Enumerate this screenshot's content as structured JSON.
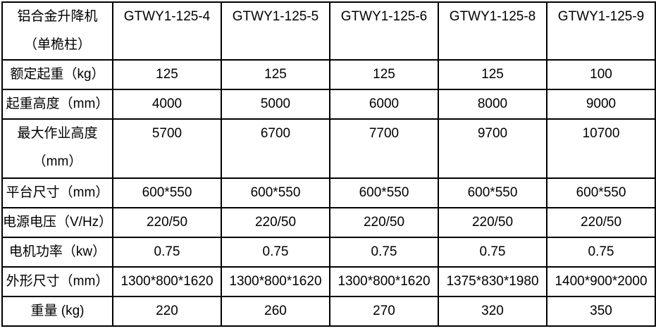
{
  "table": {
    "corner": {
      "line1": "铝合金升降机",
      "line2": "（单桅柱）"
    },
    "models": [
      "GTWY1-125-4",
      "GTWY1-125-5",
      "GTWY1-125-6",
      "GTWY1-125-8",
      "GTWY1-125-9"
    ],
    "rows": [
      {
        "label": "额定起重（kg）",
        "values": [
          "125",
          "125",
          "125",
          "125",
          "100"
        ]
      },
      {
        "label": "起重高度（mm）",
        "values": [
          "4000",
          "5000",
          "6000",
          "8000",
          "9000"
        ]
      },
      {
        "label": "最大作业高度",
        "label2": "（mm）",
        "values": [
          "5700",
          "6700",
          "7700",
          "9700",
          "10700"
        ]
      },
      {
        "label": "平台尺寸（mm）",
        "values": [
          "600*550",
          "600*550",
          "600*550",
          "600*550",
          "600*550"
        ]
      },
      {
        "label": "电源电压（V/Hz）",
        "values": [
          "220/50",
          "220/50",
          "220/50",
          "220/50",
          "220/50"
        ]
      },
      {
        "label": "电机功率（kw）",
        "values": [
          "0.75",
          "0.75",
          "0.75",
          "0.75",
          "0.75"
        ]
      },
      {
        "label": "外形尺寸（mm）",
        "values": [
          "1300*800*1620",
          "1300*800*1620",
          "1300*800*1620",
          "1375*830*1980",
          "1400*900*2000"
        ]
      },
      {
        "label": "重量 (kg)",
        "values": [
          "220",
          "260",
          "270",
          "320",
          "350"
        ]
      }
    ],
    "colors": {
      "border": "#000000",
      "text": "#000000",
      "background": "#ffffff"
    }
  }
}
